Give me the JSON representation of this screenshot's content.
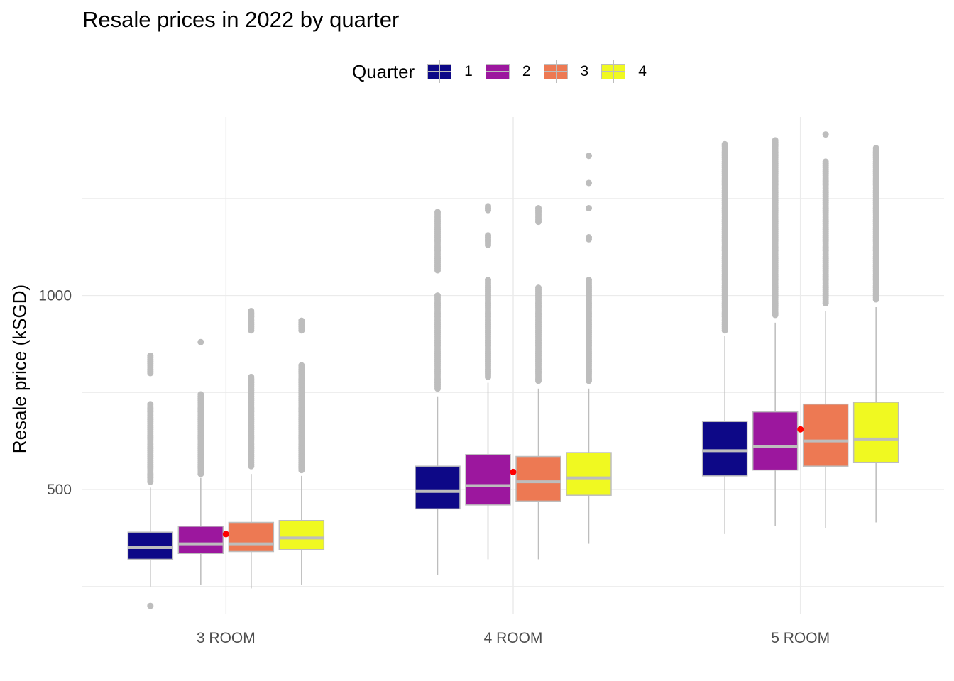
{
  "chart_data": {
    "type": "box",
    "title": "Resale prices in 2022 by quarter",
    "xlabel": "",
    "ylabel": "Resale price (kSGD)",
    "ylim": [
      180,
      1460
    ],
    "yticks": [
      500,
      1000
    ],
    "grid": true,
    "legend": {
      "title": "Quarter",
      "position": "top"
    },
    "categories": [
      "3 ROOM",
      "4 ROOM",
      "5 ROOM"
    ],
    "series": [
      {
        "name": "1",
        "color": "#0d0887",
        "boxes": [
          {
            "q1": 320,
            "median": 350,
            "q3": 390,
            "whisker_low": 250,
            "whisker_high": 505,
            "outliers": [
              200,
              520,
              540,
              560,
              580,
              600,
              620,
              640,
              660,
              680,
              700,
              720,
              800,
              845
            ]
          },
          {
            "q1": 450,
            "median": 495,
            "q3": 560,
            "whisker_low": 280,
            "whisker_high": 740,
            "outliers": [
              760,
              800,
              850,
              900,
              950,
              1000,
              1065,
              1100,
              1130,
              1150,
              1205,
              1215
            ]
          },
          {
            "q1": 535,
            "median": 600,
            "q3": 675,
            "whisker_low": 385,
            "whisker_high": 895,
            "outliers": [
              910,
              950,
              1000,
              1050,
              1100,
              1150,
              1200,
              1250,
              1280,
              1330,
              1345,
              1390
            ]
          }
        ]
      },
      {
        "name": "2",
        "color": "#9c179e",
        "boxes": [
          {
            "q1": 335,
            "median": 360,
            "q3": 405,
            "whisker_low": 255,
            "whisker_high": 530,
            "outliers": [
              540,
              570,
              600,
              640,
              680,
              720,
              745,
              880
            ]
          },
          {
            "q1": 460,
            "median": 510,
            "q3": 590,
            "whisker_low": 320,
            "whisker_high": 775,
            "outliers": [
              790,
              830,
              880,
              930,
              970,
              1010,
              1040,
              1130,
              1155,
              1220,
              1230
            ]
          },
          {
            "q1": 550,
            "median": 610,
            "q3": 700,
            "whisker_low": 405,
            "whisker_high": 930,
            "outliers": [
              950,
              1000,
              1050,
              1100,
              1150,
              1200,
              1250,
              1300,
              1335,
              1385,
              1400
            ]
          }
        ]
      },
      {
        "name": "3",
        "color": "#ed7953",
        "boxes": [
          {
            "q1": 340,
            "median": 360,
            "q3": 415,
            "whisker_low": 245,
            "whisker_high": 540,
            "outliers": [
              560,
              600,
              650,
              700,
              750,
              770,
              790,
              910,
              945,
              960
            ]
          },
          {
            "q1": 470,
            "median": 520,
            "q3": 585,
            "whisker_low": 320,
            "whisker_high": 760,
            "outliers": [
              780,
              830,
              880,
              930,
              980,
              1000,
              1020,
              1190,
              1210,
              1225
            ]
          },
          {
            "q1": 560,
            "median": 625,
            "q3": 720,
            "whisker_low": 400,
            "whisker_high": 960,
            "outliers": [
              980,
              1030,
              1080,
              1130,
              1180,
              1230,
              1260,
              1320,
              1345,
              1415
            ]
          }
        ]
      },
      {
        "name": "4",
        "color": "#f0f921",
        "boxes": [
          {
            "q1": 345,
            "median": 375,
            "q3": 420,
            "whisker_low": 255,
            "whisker_high": 535,
            "outliers": [
              550,
              590,
              630,
              680,
              730,
              760,
              795,
              820,
              910,
              935
            ]
          },
          {
            "q1": 485,
            "median": 530,
            "q3": 595,
            "whisker_low": 360,
            "whisker_high": 760,
            "outliers": [
              780,
              830,
              880,
              930,
              980,
              1040,
              1145,
              1150,
              1225,
              1290,
              1360
            ]
          },
          {
            "q1": 570,
            "median": 630,
            "q3": 725,
            "whisker_low": 415,
            "whisker_high": 970,
            "outliers": [
              990,
              1030,
              1080,
              1130,
              1180,
              1230,
              1260,
              1290,
              1345,
              1380
            ]
          }
        ]
      }
    ],
    "means": {
      "color": "#ff0000",
      "values": [
        385,
        545,
        655
      ]
    }
  }
}
